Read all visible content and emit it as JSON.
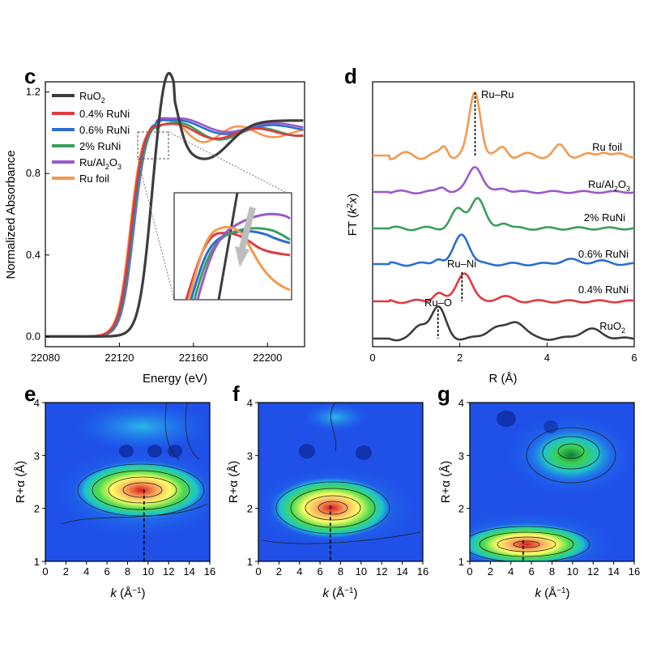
{
  "colors": {
    "RuO2": "#3d3d3d",
    "RuNi04": "#e03a3e",
    "RuNi06": "#2b6fcd",
    "RuNi2": "#3a9e5d",
    "RuAl2O3": "#9b59c9",
    "Rufoil": "#f39a4f"
  },
  "chart_data": [
    {
      "id": "c",
      "type": "line",
      "panel_letter": "c",
      "xlabel": "Energy (eV)",
      "ylabel": "Normalized Absorbance",
      "xlim": [
        22080,
        22220
      ],
      "ylim": [
        -0.05,
        1.25
      ],
      "xticks": [
        "22080",
        "22120",
        "22160",
        "22200"
      ],
      "yticks": [
        "0.0",
        "0.4",
        "0.8",
        "1.2"
      ],
      "legend": [
        "RuO",
        "0.4% RuNi",
        "0.6% RuNi",
        "2% RuNi",
        "Ru/Al",
        "Ru foil"
      ],
      "legend_placement": "top-left",
      "inset": "zoom of 22130–22150 eV region"
    },
    {
      "id": "d",
      "type": "line",
      "panel_letter": "d",
      "xlabel": "R (Å)",
      "ylabel": "FT (k²x)",
      "xlim": [
        0,
        6
      ],
      "xticks": [
        "0",
        "2",
        "4",
        "6"
      ],
      "trace_labels": [
        "Ru foil",
        "Ru/Al",
        "2% RuNi",
        "0.6% RuNi",
        "0.4% RuNi",
        "RuO"
      ],
      "annotations": [
        "Ru–Ru",
        "Ru–Ni",
        "Ru–O"
      ],
      "peak_positions_R": {
        "Ru–Ru": 2.35,
        "Ru–Ni": 2.05,
        "Ru–O": 1.5
      }
    },
    {
      "id": "e",
      "type": "heatmap",
      "panel_letter": "e",
      "xlabel": "k (Å⁻¹)",
      "ylabel": "R+α (Å)",
      "xlim": [
        0,
        16
      ],
      "ylim": [
        1,
        4
      ],
      "xticks": [
        "0",
        "2",
        "4",
        "6",
        "8",
        "10",
        "12",
        "14",
        "16"
      ],
      "yticks": [
        "1",
        "2",
        "3",
        "4"
      ],
      "max_position": {
        "k": 9.6,
        "R": 2.35
      }
    },
    {
      "id": "f",
      "type": "heatmap",
      "panel_letter": "f",
      "xlabel": "k (Å⁻¹)",
      "ylabel": "R+α (Å)",
      "xlim": [
        0,
        16
      ],
      "ylim": [
        1,
        4
      ],
      "xticks": [
        "0",
        "2",
        "4",
        "6",
        "8",
        "10",
        "12",
        "14",
        "16"
      ],
      "yticks": [
        "1",
        "2",
        "3",
        "4"
      ],
      "max_position": {
        "k": 7.0,
        "R": 2.05
      }
    },
    {
      "id": "g",
      "type": "heatmap",
      "panel_letter": "g",
      "xlabel": "k (Å⁻¹)",
      "ylabel": "R+α (Å)",
      "xlim": [
        0,
        16
      ],
      "ylim": [
        1,
        4
      ],
      "xticks": [
        "0",
        "2",
        "4",
        "6",
        "8",
        "10",
        "12",
        "14",
        "16"
      ],
      "yticks": [
        "1",
        "2",
        "3",
        "4"
      ],
      "max_position": {
        "k": 5.2,
        "R": 1.4
      }
    }
  ]
}
